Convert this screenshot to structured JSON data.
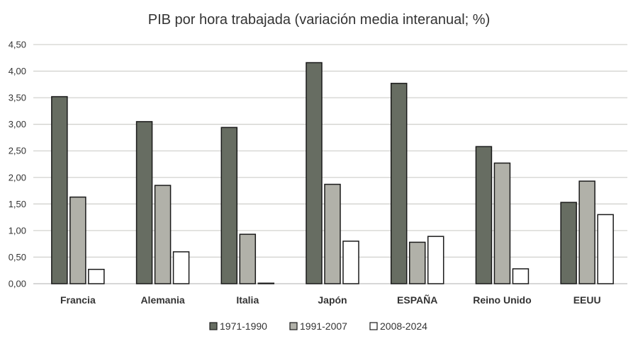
{
  "chart_data": {
    "type": "bar",
    "title": "PIB por hora trabajada (variación  media interanual; %)",
    "xlabel": "",
    "ylabel": "",
    "categories": [
      "Francia",
      "Alemania",
      "Italia",
      "Japón",
      "ESPAÑA",
      "Reino Unido",
      "EEUU"
    ],
    "series": [
      {
        "name": "1971-1990",
        "color": "#676d62",
        "values": [
          3.52,
          3.05,
          2.94,
          4.16,
          3.77,
          2.58,
          1.53
        ]
      },
      {
        "name": "1991-2007",
        "color": "#b1b1a9",
        "values": [
          1.63,
          1.85,
          0.93,
          1.87,
          0.78,
          2.27,
          1.93
        ]
      },
      {
        "name": "2008-2024",
        "color": "#ffffff",
        "values": [
          0.27,
          0.6,
          0.01,
          0.8,
          0.89,
          0.28,
          1.3
        ]
      }
    ],
    "ylim": [
      0,
      4.5
    ],
    "yticks": [
      "0,00",
      "0,50",
      "1,00",
      "1,50",
      "2,00",
      "2,50",
      "3,00",
      "3,50",
      "4,00",
      "4,50"
    ],
    "grid": true,
    "legend": "bottom"
  }
}
